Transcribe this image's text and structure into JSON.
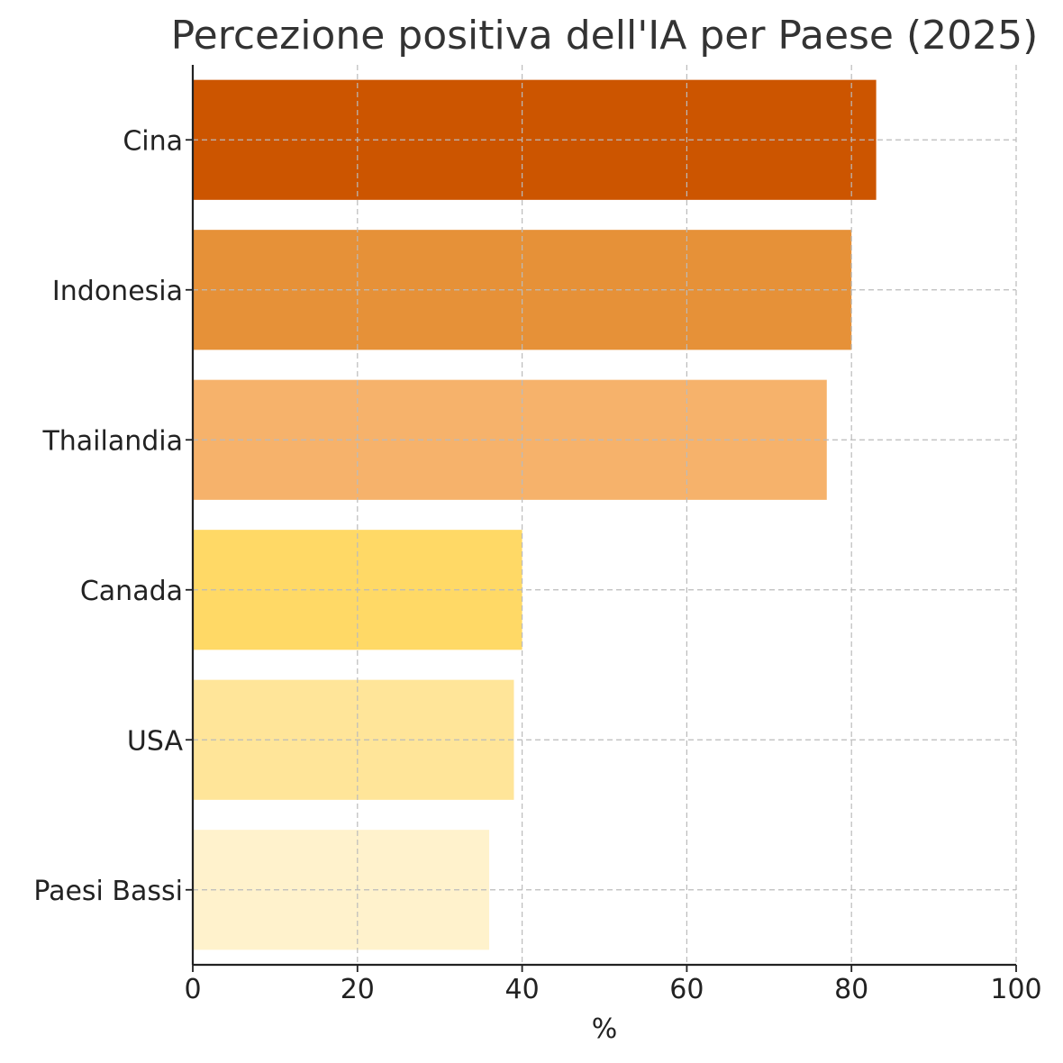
{
  "chart_data": {
    "type": "bar",
    "orientation": "horizontal",
    "title": "Percezione positiva dell'IA per Paese (2025)",
    "xlabel": "%",
    "ylabel": "",
    "categories": [
      "Cina",
      "Indonesia",
      "Thailandia",
      "Canada",
      "USA",
      "Paesi Bassi"
    ],
    "values": [
      83,
      80,
      77,
      40,
      39,
      36
    ],
    "colors": [
      "#cc5500",
      "#e69138",
      "#f6b26b",
      "#ffd966",
      "#ffe599",
      "#fff2cc"
    ],
    "xlim": [
      0,
      100
    ],
    "xticks": [
      "0",
      "20",
      "40",
      "60",
      "80",
      "100"
    ],
    "grid": true
  }
}
